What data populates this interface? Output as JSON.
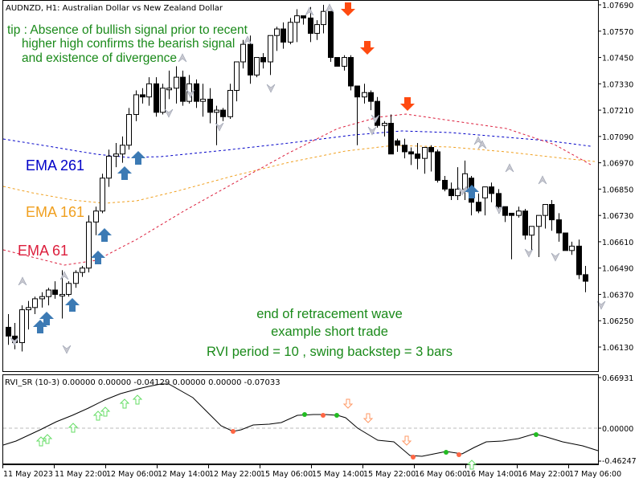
{
  "window": {
    "title": "AUDNZD, H1:  Australian Dollar vs New Zealand Dollar",
    "symbol": "AUDNZD",
    "timeframe": "H1"
  },
  "annotations": {
    "tip_lines": [
      "tip : Absence of bullish signal prior to recent",
      "higher high confirms the bearish signal",
      "and existence of divergence"
    ],
    "center_lines": [
      "end of retracement wave",
      "example short trade",
      "RVI period = 10 , swing backstep = 3 bars"
    ],
    "ema_labels": [
      {
        "text": "EMA 261",
        "color": "#0000c8"
      },
      {
        "text": "EMA 161",
        "color": "#f0a020"
      },
      {
        "text": "EMA 61",
        "color": "#dc1e3c"
      }
    ]
  },
  "indicator": {
    "header": "RVI_SR (10-3) 0.00000 0.00000 -0.04129 0.00000 0.00000 -0.07033",
    "axis_labels": [
      "0.66931",
      "0.00000",
      "-0.46247"
    ]
  },
  "colors": {
    "ema261": "#0000c8",
    "ema161": "#f0a020",
    "ema61": "#dc1e3c",
    "buy_arrow": "#3c7ab4",
    "sell_arrow": "#ff4a10",
    "note_text": "#1a8a1a",
    "rvi_up_arrow": "#66dd66",
    "rvi_down_arrow": "#ff9966",
    "dot_green": "#22bb22",
    "dot_red": "#ff6644"
  },
  "chart_data": [
    {
      "type": "candlestick",
      "title": "AUDNZD, H1: Australian Dollar vs New Zealand Dollar",
      "xlabel": "",
      "ylabel": "",
      "ylim": [
        1.0603,
        1.0772
      ],
      "y_ticks": [
        "1.07690",
        "1.07570",
        "1.07450",
        "1.07330",
        "1.07210",
        "1.07090",
        "1.06970",
        "1.06850",
        "1.06730",
        "1.06610",
        "1.06490",
        "1.06370",
        "1.06250",
        "1.06130"
      ],
      "x_ticks": [
        "11 May 2023",
        "11 May 22:00",
        "12 May 06:00",
        "12 May 14:00",
        "12 May 22:00",
        "15 May 06:00",
        "15 May 14:00",
        "15 May 22:00",
        "16 May 06:00",
        "16 May 14:00",
        "16 May 22:00",
        "17 May 06:00"
      ],
      "grid": false,
      "ohlc": [
        [
          1.0622,
          1.0628,
          1.0614,
          1.0618
        ],
        [
          1.0618,
          1.0624,
          1.0612,
          1.0615
        ],
        [
          1.0615,
          1.0632,
          1.0611,
          1.063
        ],
        [
          1.063,
          1.0634,
          1.0621,
          1.0631
        ],
        [
          1.0631,
          1.0636,
          1.0628,
          1.0635
        ],
        [
          1.0635,
          1.0638,
          1.0631,
          1.0636
        ],
        [
          1.0636,
          1.064,
          1.0632,
          1.0639
        ],
        [
          1.0639,
          1.0643,
          1.0635,
          1.0637
        ],
        [
          1.0637,
          1.0648,
          1.0626,
          1.0637
        ],
        [
          1.0637,
          1.0643,
          1.0636,
          1.0642
        ],
        [
          1.0642,
          1.0648,
          1.064,
          1.0647
        ],
        [
          1.0647,
          1.065,
          1.0645,
          1.0649
        ],
        [
          1.0649,
          1.0673,
          1.0647,
          1.067
        ],
        [
          1.067,
          1.0677,
          1.0664,
          1.0675
        ],
        [
          1.0675,
          1.0692,
          1.0674,
          1.069
        ],
        [
          1.069,
          1.0703,
          1.0686,
          1.07
        ],
        [
          1.07,
          1.0706,
          1.0695,
          1.0701
        ],
        [
          1.0701,
          1.0709,
          1.0697,
          1.0705
        ],
        [
          1.0705,
          1.0722,
          1.0703,
          1.0719
        ],
        [
          1.0719,
          1.073,
          1.0716,
          1.0728
        ],
        [
          1.0728,
          1.0731,
          1.0724,
          1.0727
        ],
        [
          1.0727,
          1.0736,
          1.0723,
          1.0733
        ],
        [
          1.0733,
          1.0736,
          1.0718,
          1.072
        ],
        [
          1.072,
          1.0733,
          1.0719,
          1.0731
        ],
        [
          1.0731,
          1.0739,
          1.0726,
          1.0731
        ],
        [
          1.0731,
          1.0741,
          1.0724,
          1.0736
        ],
        [
          1.0736,
          1.0739,
          1.0723,
          1.0725
        ],
        [
          1.0725,
          1.0737,
          1.0724,
          1.0733
        ],
        [
          1.0733,
          1.0735,
          1.0722,
          1.0725
        ],
        [
          1.0725,
          1.0733,
          1.0718,
          1.0726
        ],
        [
          1.0726,
          1.0731,
          1.0715,
          1.072
        ],
        [
          1.072,
          1.0723,
          1.0705,
          1.0721
        ],
        [
          1.0721,
          1.0722,
          1.0716,
          1.0718
        ],
        [
          1.0718,
          1.0733,
          1.0717,
          1.073
        ],
        [
          1.073,
          1.0738,
          1.0725,
          1.0743
        ],
        [
          1.0743,
          1.0753,
          1.074,
          1.0751
        ],
        [
          1.0751,
          1.0755,
          1.0733,
          1.0737
        ],
        [
          1.0737,
          1.0745,
          1.0736,
          1.0745
        ],
        [
          1.0745,
          1.0747,
          1.074,
          1.0743
        ],
        [
          1.0743,
          1.0755,
          1.0737,
          1.0755
        ],
        [
          1.0755,
          1.0759,
          1.0748,
          1.0758
        ],
        [
          1.0758,
          1.0761,
          1.0749,
          1.0752
        ],
        [
          1.0752,
          1.0763,
          1.0751,
          1.0761
        ],
        [
          1.0761,
          1.0767,
          1.0752,
          1.0764
        ],
        [
          1.0764,
          1.0762,
          1.076,
          1.0763
        ],
        [
          1.0763,
          1.0768,
          1.0752,
          1.0756
        ],
        [
          1.0756,
          1.0762,
          1.0753,
          1.076
        ],
        [
          1.076,
          1.0769,
          1.0756,
          1.0766
        ],
        [
          1.0766,
          1.0764,
          1.0743,
          1.0745
        ],
        [
          1.0745,
          1.0745,
          1.0741,
          1.0741
        ],
        [
          1.0741,
          1.0746,
          1.0739,
          1.0745
        ],
        [
          1.0745,
          1.0746,
          1.073,
          1.0732
        ],
        [
          1.0732,
          1.0731,
          1.0705,
          1.0727
        ],
        [
          1.0727,
          1.0733,
          1.0724,
          1.0729
        ],
        [
          1.0729,
          1.073,
          1.0721,
          1.0725
        ],
        [
          1.0725,
          1.0727,
          1.0713,
          1.0714
        ],
        [
          1.0714,
          1.0716,
          1.0709,
          1.0715
        ],
        [
          1.0715,
          1.0719,
          1.0705,
          1.0701
        ],
        [
          1.0707,
          1.0708,
          1.0702,
          1.0705
        ],
        [
          1.0705,
          1.0708,
          1.0699,
          1.0702
        ],
        [
          1.0702,
          1.0704,
          1.0696,
          1.0701
        ],
        [
          1.0701,
          1.0706,
          1.0694,
          1.0699
        ],
        [
          1.0699,
          1.0704,
          1.0692,
          1.0704
        ],
        [
          1.0704,
          1.0705,
          1.0693,
          1.0702
        ],
        [
          1.0702,
          1.0703,
          1.0688,
          1.0689
        ],
        [
          1.0689,
          1.0691,
          1.0684,
          1.0685
        ],
        [
          1.0685,
          1.0688,
          1.068,
          1.0682
        ],
        [
          1.0682,
          1.0695,
          1.068,
          1.0685
        ],
        [
          1.0685,
          1.0698,
          1.068,
          1.0692
        ],
        [
          1.069,
          1.0691,
          1.0673,
          1.0679
        ],
        [
          1.0679,
          1.0683,
          1.0674,
          1.0675
        ],
        [
          1.0681,
          1.0684,
          1.0673,
          1.0686
        ],
        [
          1.0686,
          1.0688,
          1.0679,
          1.0683
        ],
        [
          1.0683,
          1.0685,
          1.0674,
          1.0677
        ],
        [
          1.0677,
          1.0677,
          1.067,
          1.0673
        ],
        [
          1.0674,
          1.0673,
          1.0653,
          1.0673
        ],
        [
          1.0673,
          1.0677,
          1.0672,
          1.0675
        ],
        [
          1.0675,
          1.0676,
          1.0662,
          1.0664
        ],
        [
          1.0664,
          1.0668,
          1.0657,
          1.0668
        ],
        [
          1.0668,
          1.0672,
          1.0654,
          1.0673
        ],
        [
          1.0673,
          1.0676,
          1.0667,
          1.0678
        ],
        [
          1.0678,
          1.068,
          1.0666,
          1.0671
        ],
        [
          1.0671,
          1.0674,
          1.0661,
          1.0665
        ],
        [
          1.0665,
          1.0664,
          1.0657,
          1.0657
        ],
        [
          1.0657,
          1.0661,
          1.0655,
          1.0659
        ],
        [
          1.0659,
          1.0662,
          1.0644,
          1.0646
        ],
        [
          1.0646,
          1.065,
          1.0638,
          1.0643
        ]
      ],
      "ema_series": [
        {
          "name": "EMA 261",
          "style": "dashed",
          "color": "#0000c8"
        },
        {
          "name": "EMA 161",
          "style": "dashed",
          "color": "#f0a020"
        },
        {
          "name": "EMA 61",
          "style": "dashed",
          "color": "#dc1e3c"
        }
      ],
      "signals": {
        "buy_arrows_count": 9,
        "sell_arrows_count": 3
      }
    },
    {
      "type": "line",
      "title": "RVI_SR (10-3) 0.00000 0.00000 -0.04129 0.00000 0.00000 -0.07033",
      "ylim": [
        -0.46247,
        0.66931
      ],
      "y_ticks": [
        "0.66931",
        "0.00000",
        "-0.46247"
      ],
      "zero_line": true,
      "series": [
        {
          "name": "RVI_SR",
          "color": "#000000"
        }
      ]
    }
  ]
}
